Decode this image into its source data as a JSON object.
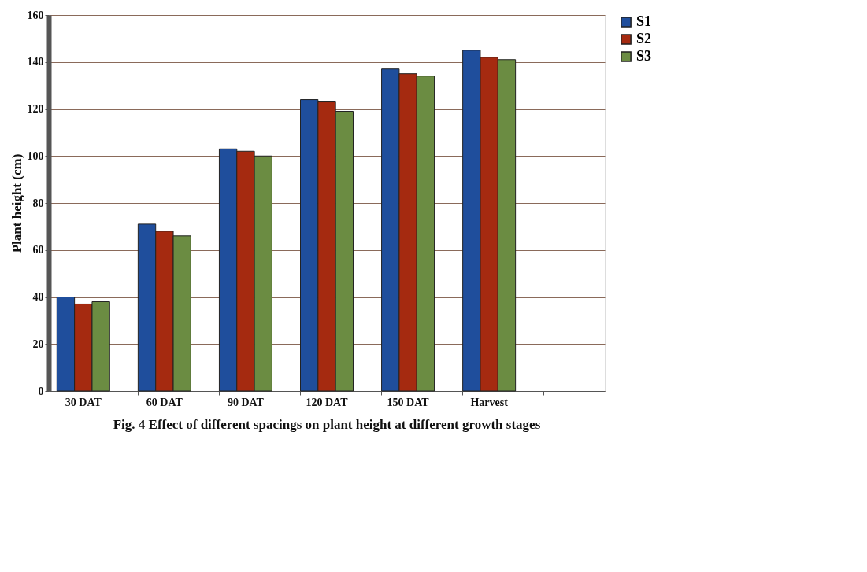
{
  "chart_data": {
    "type": "bar",
    "title": "Fig. 4 Effect of  different spacings on plant height at different growth stages",
    "ylabel": "Plant height (cm)",
    "categories": [
      "30 DAT",
      "60 DAT",
      "90 DAT",
      "120 DAT",
      "150 DAT",
      "Harvest",
      null
    ],
    "series": [
      {
        "name": "S1",
        "color": "#1f4e9c",
        "values": [
          40,
          71,
          103,
          124,
          137,
          145,
          null
        ]
      },
      {
        "name": "S2",
        "color": "#a52a10",
        "values": [
          37,
          68,
          102,
          123,
          135,
          142,
          null
        ]
      },
      {
        "name": "S3",
        "color": "#6b8c42",
        "values": [
          38,
          66,
          100,
          119,
          134,
          141,
          null
        ]
      }
    ],
    "ylim": [
      0,
      160
    ],
    "yticks": [
      0,
      20,
      40,
      60,
      80,
      100,
      120,
      140,
      160
    ],
    "grid": "y",
    "legend": "right"
  }
}
